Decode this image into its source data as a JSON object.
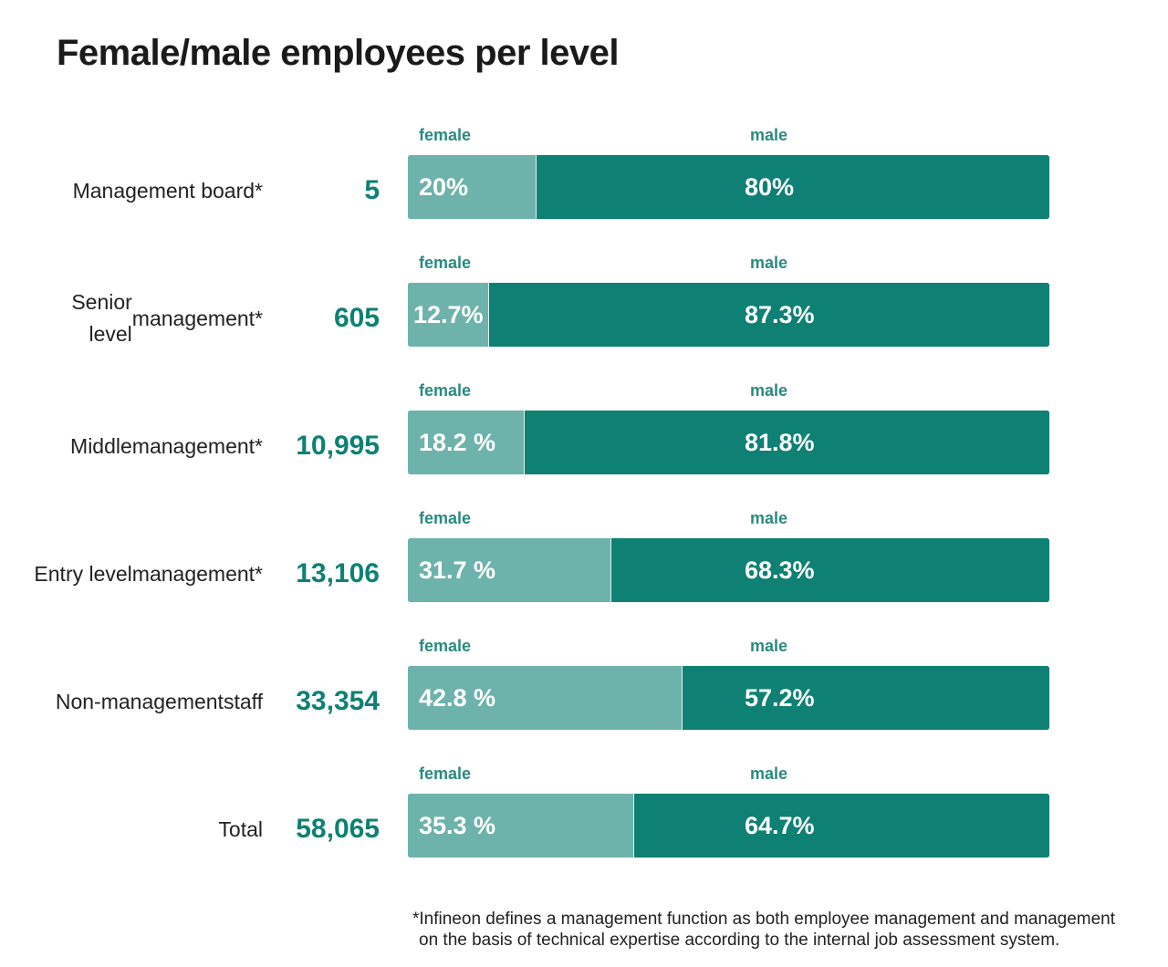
{
  "title": "Female/male employees per level",
  "chart_data": {
    "type": "bar",
    "stacked": true,
    "orientation": "horizontal",
    "title": "Female/male employees per level",
    "categories": [
      [
        "Management board*"
      ],
      [
        "Senior level",
        "management*"
      ],
      [
        "Middle",
        "management*"
      ],
      [
        "Entry level",
        "management*"
      ],
      [
        "Non-management",
        "staff"
      ],
      [
        "Total"
      ]
    ],
    "counts": [
      "5",
      "605",
      "10,995",
      "13,106",
      "33,354",
      "58,065"
    ],
    "series": [
      {
        "name": "female",
        "values": [
          20,
          12.7,
          18.2,
          31.7,
          42.8,
          35.3
        ],
        "labels": [
          "20%",
          "12.7%",
          "18.2 %",
          "31.7 %",
          "42.8 %",
          "35.3 %"
        ],
        "color": "#6db3ab"
      },
      {
        "name": "male",
        "values": [
          80,
          87.3,
          81.8,
          68.3,
          57.2,
          64.7
        ],
        "labels": [
          "80%",
          "87.3%",
          "81.8%",
          "68.3%",
          "57.2%",
          "64.7%"
        ],
        "color": "#0e8074"
      }
    ],
    "xlim": [
      0,
      100
    ],
    "grid": false
  },
  "colors": {
    "accent": "#0e8074",
    "female": "#6db3ab",
    "male": "#0e8074",
    "caption": "#2a8a80"
  },
  "footnote": [
    "*Infineon defines a management function as both employee management and management",
    "on the basis of technical expertise according to the internal job assessment system."
  ]
}
